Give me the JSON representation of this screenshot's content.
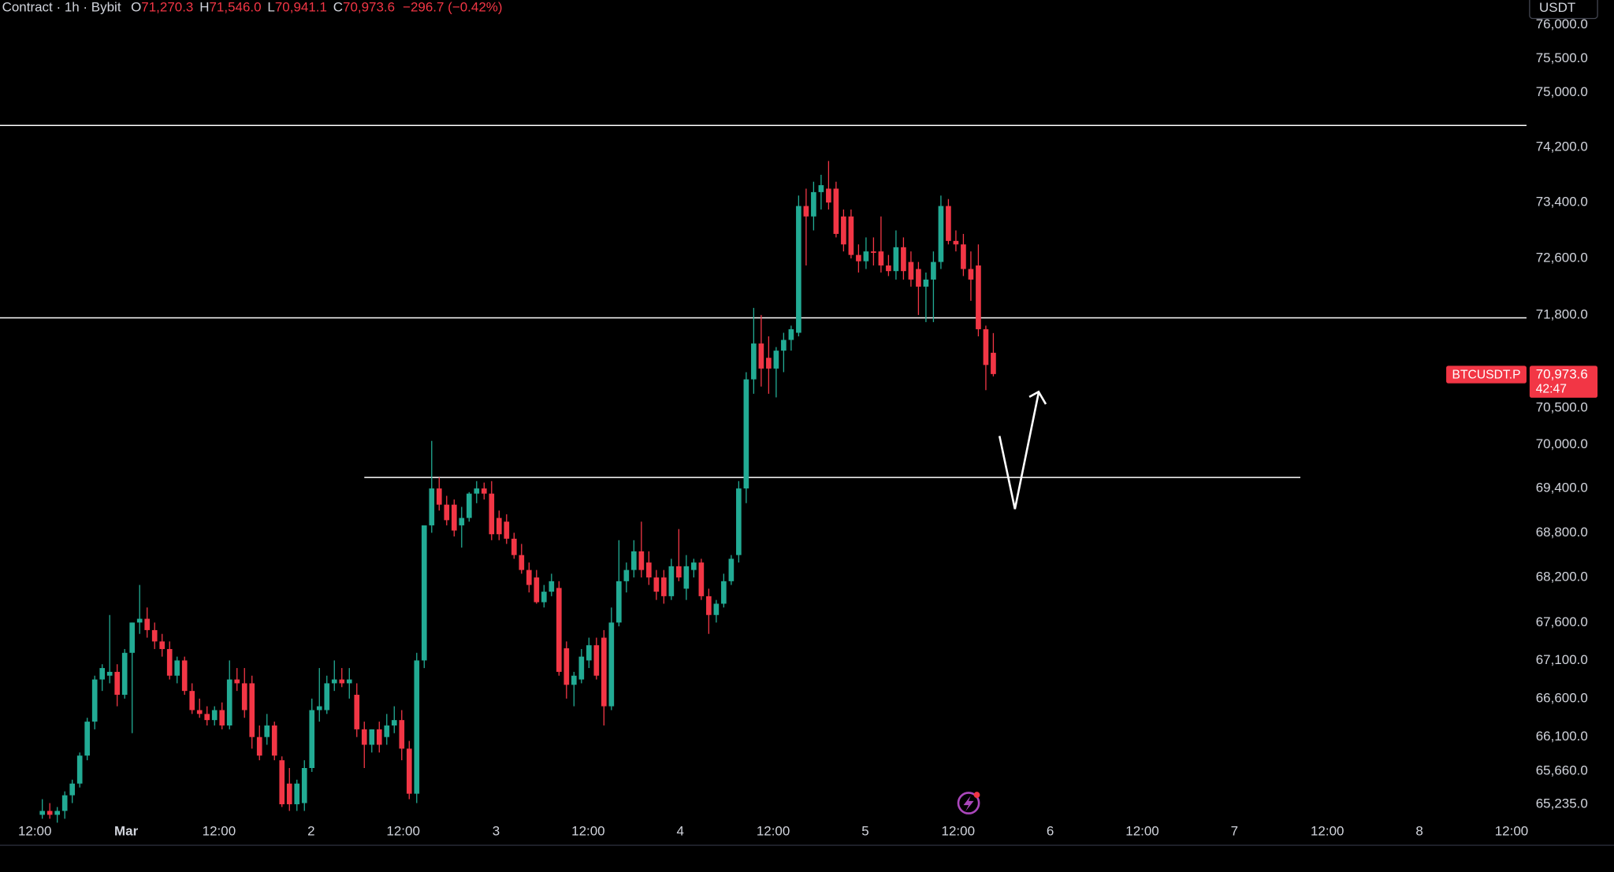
{
  "chart_data": {
    "type": "candlestick",
    "header": {
      "source": "Contract · 1h · Bybit",
      "fields": [
        {
          "key": "O",
          "value": "71,270.3"
        },
        {
          "key": "H",
          "value": "71,546.0"
        },
        {
          "key": "L",
          "value": "70,941.1"
        },
        {
          "key": "C",
          "value": "70,973.6"
        }
      ],
      "change": "−296.7 (−0.42%)"
    },
    "currency": "USDT",
    "symbol_tag": "BTCUSDT.P",
    "last_price": {
      "value": 70973.6,
      "label": "70,973.6"
    },
    "countdown": "42:47",
    "up_color": "#22ab94",
    "down_color": "#f23645",
    "log_scale": true,
    "ylim": [
      65066,
      76372
    ],
    "yticks": [
      {
        "value": 76000,
        "label": "76,000.0"
      },
      {
        "value": 75500,
        "label": "75,500.0"
      },
      {
        "value": 75000,
        "label": "75,000.0"
      },
      {
        "value": 74200,
        "label": "74,200.0"
      },
      {
        "value": 73400,
        "label": "73,400.0"
      },
      {
        "value": 72600,
        "label": "72,600.0"
      },
      {
        "value": 71800,
        "label": "71,800.0"
      },
      {
        "value": 70500,
        "label": "70,500.0"
      },
      {
        "value": 70000,
        "label": "70,000.0"
      },
      {
        "value": 69400,
        "label": "69,400.0"
      },
      {
        "value": 68800,
        "label": "68,800.0"
      },
      {
        "value": 68200,
        "label": "68,200.0"
      },
      {
        "value": 67600,
        "label": "67,600.0"
      },
      {
        "value": 67100,
        "label": "67,100.0"
      },
      {
        "value": 66600,
        "label": "66,600.0"
      },
      {
        "value": 66100,
        "label": "66,100.0"
      },
      {
        "value": 65660,
        "label": "65,660.0"
      },
      {
        "value": 65235,
        "label": "65,235.0"
      }
    ],
    "xlim": [
      -5.65,
      198.2
    ],
    "xticks": [
      {
        "value": -1,
        "label": "12:00"
      },
      {
        "value": 11.2,
        "label": "Mar"
      },
      {
        "value": 23.6,
        "label": "12:00"
      },
      {
        "value": 35.9,
        "label": "2"
      },
      {
        "value": 48.2,
        "label": "12:00"
      },
      {
        "value": 60.6,
        "label": "3"
      },
      {
        "value": 72.9,
        "label": "12:00"
      },
      {
        "value": 85.2,
        "label": "4"
      },
      {
        "value": 97.6,
        "label": "12:00"
      },
      {
        "value": 109.9,
        "label": "5"
      },
      {
        "value": 122.3,
        "label": "12:00"
      },
      {
        "value": 134.6,
        "label": "6"
      },
      {
        "value": 146.9,
        "label": "12:00"
      },
      {
        "value": 159.2,
        "label": "7"
      },
      {
        "value": 171.6,
        "label": "12:00"
      },
      {
        "value": 183.9,
        "label": "8"
      },
      {
        "value": 196.2,
        "label": "12:00"
      }
    ],
    "levels": [
      {
        "value": 74517
      },
      {
        "value": 71760
      },
      {
        "value": 69550,
        "x": [
          43,
          168
        ]
      }
    ],
    "candles": [
      [
        65100,
        65300,
        65050,
        65150
      ],
      [
        65150,
        65250,
        65050,
        65100
      ],
      [
        65100,
        65200,
        65000,
        65150
      ],
      [
        65150,
        65400,
        65050,
        65350
      ],
      [
        65350,
        65550,
        65250,
        65500
      ],
      [
        65500,
        65900,
        65450,
        65860
      ],
      [
        65860,
        66350,
        65800,
        66300
      ],
      [
        66300,
        66900,
        66200,
        66850
      ],
      [
        66850,
        67050,
        66700,
        67000
      ],
      [
        66900,
        67700,
        66800,
        66950
      ],
      [
        66950,
        67050,
        66500,
        66650
      ],
      [
        66650,
        67250,
        66600,
        67200
      ],
      [
        67200,
        67600,
        66150,
        67600
      ],
      [
        67600,
        68100,
        67450,
        67650
      ],
      [
        67650,
        67800,
        67400,
        67500
      ],
      [
        67500,
        67600,
        67250,
        67350
      ],
      [
        67350,
        67450,
        67150,
        67250
      ],
      [
        67250,
        67350,
        66850,
        66900
      ],
      [
        66900,
        67150,
        66800,
        67100
      ],
      [
        67100,
        67150,
        66650,
        66700
      ],
      [
        66700,
        66800,
        66400,
        66450
      ],
      [
        66450,
        66600,
        66350,
        66400
      ],
      [
        66400,
        66500,
        66250,
        66320
      ],
      [
        66320,
        66500,
        66250,
        66450
      ],
      [
        66450,
        66550,
        66200,
        66250
      ],
      [
        66250,
        67100,
        66200,
        66850
      ],
      [
        66850,
        67000,
        66700,
        66800
      ],
      [
        66800,
        67000,
        66350,
        66450
      ],
      [
        66800,
        66900,
        65950,
        66100
      ],
      [
        66100,
        66250,
        65800,
        65860
      ],
      [
        66100,
        66400,
        66000,
        66250
      ],
      [
        66250,
        66300,
        65800,
        65860
      ],
      [
        65800,
        65850,
        65200,
        65235
      ],
      [
        65500,
        65700,
        65150,
        65235
      ],
      [
        65235,
        65550,
        65150,
        65500
      ],
      [
        65250,
        65800,
        65150,
        65700
      ],
      [
        65700,
        66600,
        65650,
        66450
      ],
      [
        66450,
        67000,
        66300,
        66500
      ],
      [
        66450,
        66900,
        66400,
        66800
      ],
      [
        66800,
        67100,
        66700,
        66850
      ],
      [
        66850,
        67000,
        66750,
        66800
      ],
      [
        66800,
        67000,
        66600,
        66850
      ],
      [
        66650,
        66800,
        66100,
        66200
      ],
      [
        66200,
        66300,
        65700,
        66000
      ],
      [
        66000,
        66200,
        65900,
        66200
      ],
      [
        66200,
        66300,
        65900,
        66000
      ],
      [
        66100,
        66400,
        66000,
        66250
      ],
      [
        66250,
        66500,
        66150,
        66320
      ],
      [
        66320,
        66450,
        65800,
        65950
      ],
      [
        65950,
        66050,
        65300,
        65370
      ],
      [
        65370,
        67200,
        65250,
        67100
      ],
      [
        67100,
        68900,
        67000,
        68900
      ],
      [
        68900,
        70050,
        68800,
        69400
      ],
      [
        69400,
        69550,
        69100,
        69180
      ],
      [
        69180,
        69300,
        68900,
        68970
      ],
      [
        69180,
        69250,
        68750,
        68830
      ],
      [
        68900,
        69150,
        68600,
        69000
      ],
      [
        69000,
        69350,
        68950,
        69330
      ],
      [
        69330,
        69500,
        69200,
        69400
      ],
      [
        69400,
        69480,
        69250,
        69330
      ],
      [
        69330,
        69500,
        68700,
        68780
      ],
      [
        69000,
        69100,
        68700,
        68780
      ],
      [
        68950,
        69050,
        68650,
        68720
      ],
      [
        68720,
        68800,
        68450,
        68500
      ],
      [
        68500,
        68650,
        68250,
        68300
      ],
      [
        68300,
        68400,
        68000,
        68100
      ],
      [
        68200,
        68300,
        67850,
        67870
      ],
      [
        67870,
        68100,
        67800,
        68010
      ],
      [
        68010,
        68250,
        67950,
        68150
      ],
      [
        68060,
        68150,
        66900,
        66950
      ],
      [
        67260,
        67350,
        66600,
        66780
      ],
      [
        66780,
        66950,
        66500,
        66900
      ],
      [
        66850,
        67250,
        66800,
        67150
      ],
      [
        67100,
        67400,
        67000,
        67300
      ],
      [
        67300,
        67400,
        66850,
        66900
      ],
      [
        67400,
        67500,
        66250,
        66500
      ],
      [
        66500,
        67800,
        66450,
        67600
      ],
      [
        67600,
        68700,
        67550,
        68150
      ],
      [
        68150,
        68400,
        68000,
        68300
      ],
      [
        68300,
        68700,
        68200,
        68550
      ],
      [
        68550,
        68950,
        68200,
        68300
      ],
      [
        68400,
        68550,
        68100,
        68200
      ],
      [
        68200,
        68300,
        67900,
        68010
      ],
      [
        68200,
        68300,
        67850,
        67950
      ],
      [
        67950,
        68450,
        67900,
        68350
      ],
      [
        68350,
        68850,
        68150,
        68200
      ],
      [
        68050,
        68500,
        67900,
        68350
      ],
      [
        68300,
        68450,
        68200,
        68400
      ],
      [
        68400,
        68450,
        67900,
        67950
      ],
      [
        67950,
        68050,
        67450,
        67700
      ],
      [
        67700,
        67900,
        67600,
        67850
      ],
      [
        67850,
        68250,
        67800,
        68150
      ],
      [
        68150,
        68500,
        68100,
        68450
      ],
      [
        68500,
        69500,
        68400,
        69400
      ],
      [
        69400,
        71000,
        69200,
        70900
      ],
      [
        70900,
        71900,
        70700,
        71400
      ],
      [
        71400,
        71800,
        70800,
        71050
      ],
      [
        71200,
        71500,
        70700,
        71050
      ],
      [
        71050,
        71350,
        70650,
        71300
      ],
      [
        71300,
        71550,
        71000,
        71450
      ],
      [
        71450,
        71650,
        71300,
        71600
      ],
      [
        71550,
        73500,
        71500,
        73350
      ],
      [
        73350,
        73600,
        72500,
        73200
      ],
      [
        73200,
        73700,
        73000,
        73550
      ],
      [
        73550,
        73800,
        73300,
        73650
      ],
      [
        73600,
        74000,
        73300,
        73400
      ],
      [
        73600,
        73700,
        72900,
        72950
      ],
      [
        73200,
        73300,
        72700,
        72800
      ],
      [
        73200,
        73300,
        72600,
        72650
      ],
      [
        72650,
        72800,
        72400,
        72560
      ],
      [
        72560,
        72900,
        72450,
        72700
      ],
      [
        72700,
        72900,
        72500,
        72680
      ],
      [
        72700,
        73200,
        72400,
        72500
      ],
      [
        72500,
        72650,
        72350,
        72420
      ],
      [
        72420,
        73000,
        72300,
        72760
      ],
      [
        72760,
        72900,
        72300,
        72420
      ],
      [
        72550,
        72700,
        72200,
        72300
      ],
      [
        72450,
        72550,
        71800,
        72200
      ],
      [
        72200,
        72400,
        71700,
        72300
      ],
      [
        72300,
        72700,
        71700,
        72550
      ],
      [
        72550,
        73500,
        72450,
        73350
      ],
      [
        73350,
        73450,
        72800,
        72850
      ],
      [
        72850,
        73000,
        72700,
        72800
      ],
      [
        72800,
        72950,
        72350,
        72450
      ],
      [
        72450,
        72700,
        72000,
        72300
      ],
      [
        72500,
        72800,
        71500,
        71600
      ],
      [
        71600,
        71650,
        70750,
        71100
      ],
      [
        71270.3,
        71546.0,
        70941.1,
        70973.6
      ]
    ]
  }
}
